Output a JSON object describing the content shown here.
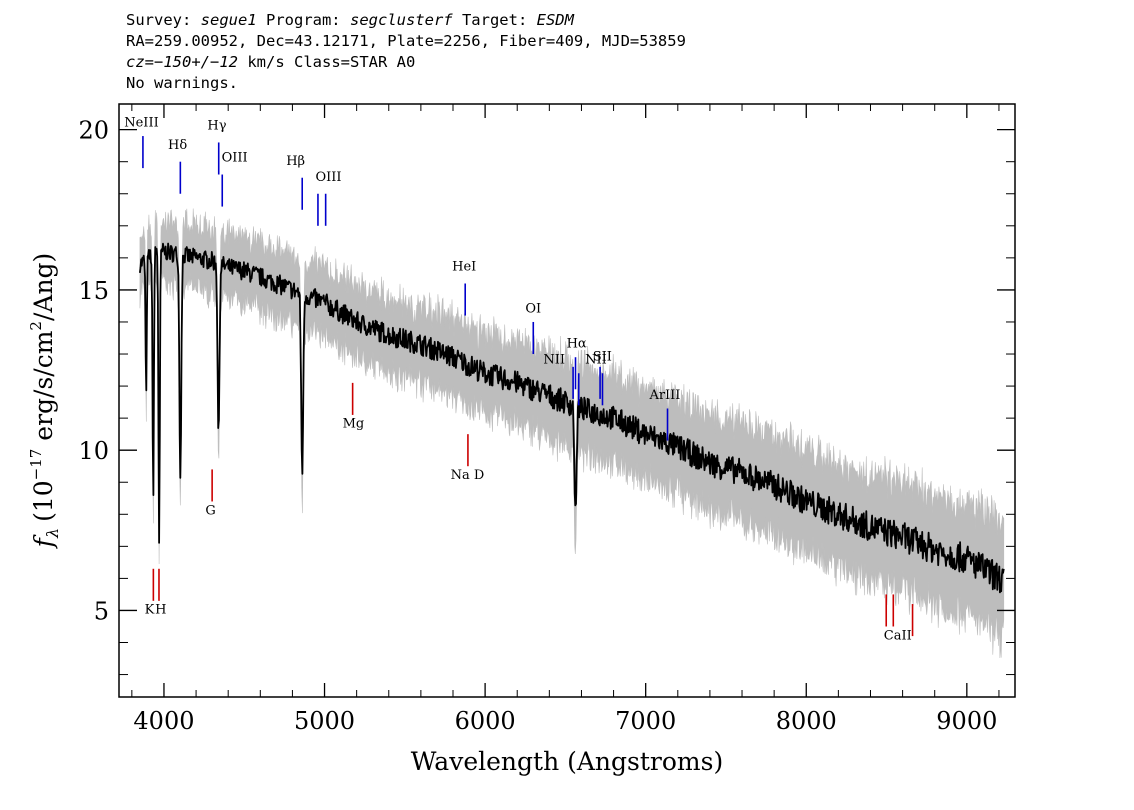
{
  "header": {
    "l1_survey_label": "Survey: ",
    "l1_survey": "segue1",
    "l1_program_label": " Program: ",
    "l1_program": "segclusterf",
    "l1_target_label": " Target: ",
    "l1_target": "ESDM",
    "l2": "RA=259.00952, Dec=43.12171, Plate=2256, Fiber=409, MJD=53859",
    "l3_cz_label": "cz",
    "l3_cz_value": "=−150+/−12",
    "l3_rest": " km/s Class=STAR A0",
    "l4": "No warnings."
  },
  "chart_data": {
    "type": "line",
    "title": "",
    "xlabel": "Wavelength (Angstroms)",
    "ylabel_prefix": "f",
    "ylabel_sub": "λ",
    "ylabel_main": "(10",
    "ylabel_exp": "−17",
    "ylabel_units": " erg/s/cm",
    "ylabel_exp2": "2",
    "ylabel_tail": "/Ang)",
    "xlim": [
      3720,
      9300
    ],
    "ylim": [
      2.3,
      20.8
    ],
    "xticks": [
      4000,
      5000,
      6000,
      7000,
      8000,
      9000
    ],
    "xtick_labels": [
      "4000",
      "5000",
      "6000",
      "7000",
      "8000",
      "9000"
    ],
    "yticks": [
      5,
      10,
      15,
      20
    ],
    "ytick_labels": [
      "5",
      "10",
      "15",
      "20"
    ],
    "grid": false,
    "colors": {
      "flux": "#000000",
      "error_band": "#bdbdbd",
      "emission": "#0000cc",
      "absorption": "#cc0000"
    },
    "continuum": {
      "x": [
        3850,
        3900,
        3950,
        4000,
        4100,
        4200,
        4300,
        4400,
        4500,
        4600,
        4700,
        4800,
        4900,
        5000,
        5200,
        5400,
        5600,
        5800,
        6000,
        6200,
        6400,
        6600,
        6800,
        7000,
        7200,
        7400,
        7600,
        7800,
        8000,
        8200,
        8400,
        8600,
        8800,
        9000,
        9100,
        9200
      ],
      "y": [
        15.8,
        16.0,
        16.2,
        16.2,
        16.1,
        16.0,
        15.9,
        15.7,
        15.6,
        15.4,
        15.2,
        15.0,
        14.8,
        14.6,
        14.0,
        13.6,
        13.3,
        12.9,
        12.4,
        12.1,
        11.7,
        11.3,
        11.0,
        10.5,
        10.1,
        9.6,
        9.3,
        8.9,
        8.4,
        8.0,
        7.6,
        7.3,
        6.9,
        6.6,
        6.3,
        6.0
      ]
    },
    "absorption_features": [
      {
        "x": 3889,
        "depth": 4.5,
        "width": 5
      },
      {
        "x": 3933,
        "depth": 7.5,
        "width": 6
      },
      {
        "x": 3970,
        "depth": 9.0,
        "width": 6
      },
      {
        "x": 4102,
        "depth": 7.0,
        "width": 8
      },
      {
        "x": 4340,
        "depth": 5.5,
        "width": 8
      },
      {
        "x": 4861,
        "depth": 5.5,
        "width": 9
      },
      {
        "x": 6563,
        "depth": 3.5,
        "width": 9
      }
    ],
    "line_markers": [
      {
        "label": "NeIII",
        "x": 3869,
        "color": "emission",
        "y_top": 18.8,
        "y_bot": 19.8,
        "label_y": 20.1,
        "label_x": 3860
      },
      {
        "label": "Hδ",
        "x": 4102,
        "color": "emission",
        "y_top": 18.0,
        "y_bot": 19.0,
        "label_y": 19.4,
        "label_x": 4085
      },
      {
        "label": "Hγ",
        "x": 4341,
        "color": "emission",
        "y_top": 18.6,
        "y_bot": 19.6,
        "label_y": 20.0,
        "label_x": 4330
      },
      {
        "label": "OIII",
        "x": 4363,
        "color": "emission",
        "y_top": 17.6,
        "y_bot": 18.6,
        "label_y": 19.0,
        "label_x": 4440
      },
      {
        "label": "Hβ",
        "x": 4861,
        "color": "emission",
        "y_top": 17.5,
        "y_bot": 18.5,
        "label_y": 18.9,
        "label_x": 4820
      },
      {
        "label": "OIII",
        "x": 4959,
        "color": "emission",
        "y_top": 17.0,
        "y_bot": 18.0,
        "label_y": 18.4,
        "label_x": 5025
      },
      {
        "label": "",
        "x": 5007,
        "color": "emission",
        "y_top": 17.0,
        "y_bot": 18.0
      },
      {
        "label": "HeI",
        "x": 5876,
        "color": "emission",
        "y_top": 14.2,
        "y_bot": 15.2,
        "label_y": 15.6,
        "label_x": 5870
      },
      {
        "label": "OI",
        "x": 6300,
        "color": "emission",
        "y_top": 13.0,
        "y_bot": 14.0,
        "label_y": 14.3,
        "label_x": 6300
      },
      {
        "label": "NII",
        "x": 6548,
        "color": "emission",
        "y_top": 11.6,
        "y_bot": 12.6,
        "label_y": 12.7,
        "label_x": 6430
      },
      {
        "label": "Hα",
        "x": 6563,
        "color": "emission",
        "y_top": 11.9,
        "y_bot": 12.9,
        "label_y": 13.2,
        "label_x": 6570
      },
      {
        "label": "",
        "x": 6583,
        "color": "emission",
        "y_top": 11.4,
        "y_bot": 12.4
      },
      {
        "label": "NII",
        "x": 6716,
        "color": "emission",
        "y_top": 11.6,
        "y_bot": 12.6,
        "label_y": 12.7,
        "label_x": 6690
      },
      {
        "label": "SII",
        "x": 6731,
        "color": "emission",
        "y_top": 11.4,
        "y_bot": 12.4,
        "label_y": 12.8,
        "label_x": 6730
      },
      {
        "label": "ArIII",
        "x": 7136,
        "color": "emission",
        "y_top": 10.3,
        "y_bot": 11.3,
        "label_y": 11.6,
        "label_x": 7120
      },
      {
        "label": "Mg",
        "x": 5175,
        "color": "absorption",
        "y_top": 11.1,
        "y_bot": 12.1,
        "label_y": 10.7,
        "label_x": 5180
      },
      {
        "label": "Na D",
        "x": 5893,
        "color": "absorption",
        "y_top": 9.5,
        "y_bot": 10.5,
        "label_y": 9.1,
        "label_x": 5890
      },
      {
        "label": "G",
        "x": 4300,
        "color": "absorption",
        "y_top": 8.4,
        "y_bot": 9.4,
        "label_y": 8.0,
        "label_x": 4290
      },
      {
        "label": "K",
        "x": 3934,
        "color": "absorption",
        "y_top": 5.3,
        "y_bot": 6.3,
        "label_y": 4.9,
        "label_x": 3910
      },
      {
        "label": "H",
        "x": 3969,
        "color": "absorption",
        "y_top": 5.3,
        "y_bot": 6.3,
        "label_y": 4.9,
        "label_x": 3980
      },
      {
        "label": "CaII",
        "x": 8498,
        "color": "absorption",
        "y_top": 4.5,
        "y_bot": 5.5,
        "label_y": 4.1,
        "label_x": 8570
      },
      {
        "label": "",
        "x": 8542,
        "color": "absorption",
        "y_top": 4.5,
        "y_bot": 5.5
      },
      {
        "label": "",
        "x": 8662,
        "color": "absorption",
        "y_top": 4.2,
        "y_bot": 5.2
      }
    ]
  }
}
